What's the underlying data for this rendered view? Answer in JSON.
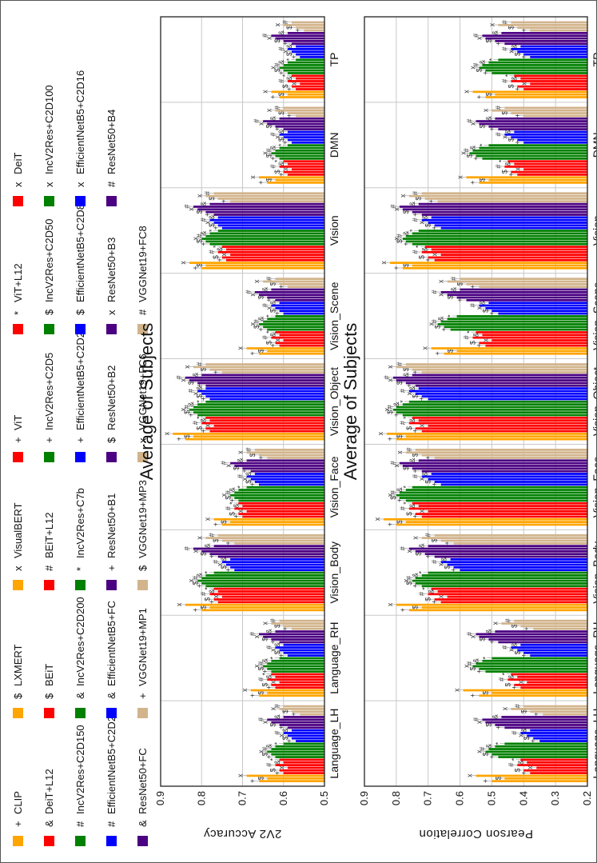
{
  "legend": [
    {
      "marker": "+",
      "label": "CLIP",
      "color": "#FFA500"
    },
    {
      "marker": "$",
      "label": "LXMERT",
      "color": "#FFA500"
    },
    {
      "marker": "x",
      "label": "VisualBERT",
      "color": "#FFA500"
    },
    {
      "marker": "+",
      "label": "ViT",
      "color": "#FF0000"
    },
    {
      "marker": "*",
      "label": "ViT+L12",
      "color": "#FF0000"
    },
    {
      "marker": "x",
      "label": "DeiT",
      "color": "#FF0000"
    },
    {
      "marker": "&",
      "label": "DeiT+L12",
      "color": "#FF0000"
    },
    {
      "marker": "$",
      "label": "BEiT",
      "color": "#FF0000"
    },
    {
      "marker": "#",
      "label": "BEiT+L12",
      "color": "#FF0000"
    },
    {
      "marker": "+",
      "label": "IncV2Res+C2D5",
      "color": "#008000"
    },
    {
      "marker": "$",
      "label": "IncV2Res+C2D50",
      "color": "#008000"
    },
    {
      "marker": "x",
      "label": "IncV2Res+C2D100",
      "color": "#008000"
    },
    {
      "marker": "#",
      "label": "IncV2Res+C2D150",
      "color": "#008000"
    },
    {
      "marker": "&",
      "label": "IncV2Res+C2D200",
      "color": "#008000"
    },
    {
      "marker": "*",
      "label": "IncV2Res+C7b",
      "color": "#008000"
    },
    {
      "marker": "+",
      "label": "EfficientNetB5+C2D2",
      "color": "#0000FF"
    },
    {
      "marker": "$",
      "label": "EfficientNetB5+C2D8",
      "color": "#0000FF"
    },
    {
      "marker": "x",
      "label": "EfficientNetB5+C2D16",
      "color": "#0000FF"
    },
    {
      "marker": "#",
      "label": "EfficientNetB5+C2D24",
      "color": "#0000FF"
    },
    {
      "marker": "&",
      "label": "EfficientNetB5+FC",
      "color": "#0000FF"
    },
    {
      "marker": "+",
      "label": "ResNet50+B1",
      "color": "#4B0082"
    },
    {
      "marker": "$",
      "label": "ResNet50+B2",
      "color": "#4B0082"
    },
    {
      "marker": "x",
      "label": "ResNet50+B3",
      "color": "#4B0082"
    },
    {
      "marker": "#",
      "label": "ResNet50+B4",
      "color": "#4B0082"
    },
    {
      "marker": "&",
      "label": "ResNet50+FC",
      "color": "#4B0082"
    },
    {
      "marker": "+",
      "label": "VGGNet19+MP1",
      "color": "#D2B48C"
    },
    {
      "marker": "$",
      "label": "VGGNet19+MP3",
      "color": "#D2B48C"
    },
    {
      "marker": "x",
      "label": "VGGNet19+FC6",
      "color": "#D2B48C"
    },
    {
      "marker": "#",
      "label": "VGGNet19+FC8",
      "color": "#D2B48C"
    }
  ],
  "chart_data": [
    {
      "type": "bar",
      "title": "Average of Subjects",
      "ylabel": "2V2 Accuracy",
      "ylim": [
        0.5,
        0.9
      ],
      "yticks": [
        "0.5",
        "0.6",
        "0.7",
        "0.8",
        "0.9"
      ],
      "grid": true,
      "categories": [
        "Language_LH",
        "Language_RH",
        "Vision_Body",
        "Vision_Face",
        "Vision_Object",
        "Vision_Scene",
        "Vision",
        "DMN",
        "TP"
      ],
      "groups": [
        {
          "name": "multimodal",
          "color": "#FFA500",
          "values": [
            [
              0.66,
              0.64,
              0.69
            ],
            [
              0.66,
              0.64,
              0.68
            ],
            [
              0.8,
              0.78,
              0.84
            ],
            [
              0.75,
              0.73,
              0.77
            ],
            [
              0.84,
              0.82,
              0.87
            ],
            [
              0.66,
              0.64,
              0.69
            ],
            [
              0.8,
              0.79,
              0.83
            ],
            [
              0.64,
              0.62,
              0.66
            ],
            [
              0.61,
              0.59,
              0.63
            ]
          ]
        },
        {
          "name": "transformer",
          "color": "#FF0000",
          "values": [
            [
              0.6,
              0.61,
              0.59,
              0.62,
              0.6,
              0.61
            ],
            [
              0.62,
              0.63,
              0.61,
              0.64,
              0.62,
              0.63
            ],
            [
              0.76,
              0.77,
              0.75,
              0.78,
              0.76,
              0.77
            ],
            [
              0.7,
              0.71,
              0.69,
              0.72,
              0.7,
              0.71
            ],
            [
              0.78,
              0.79,
              0.77,
              0.8,
              0.78,
              0.79
            ],
            [
              0.61,
              0.62,
              0.6,
              0.63,
              0.61,
              0.62
            ],
            [
              0.74,
              0.75,
              0.73,
              0.76,
              0.74,
              0.75
            ],
            [
              0.59,
              0.6,
              0.58,
              0.61,
              0.59,
              0.6
            ],
            [
              0.57,
              0.58,
              0.56,
              0.59,
              0.57,
              0.58
            ]
          ]
        },
        {
          "name": "incv2res",
          "color": "#008000",
          "values": [
            [
              0.62,
              0.63,
              0.64,
              0.63,
              0.62,
              0.6
            ],
            [
              0.63,
              0.64,
              0.65,
              0.64,
              0.63,
              0.61
            ],
            [
              0.79,
              0.8,
              0.81,
              0.8,
              0.79,
              0.77
            ],
            [
              0.71,
              0.72,
              0.73,
              0.72,
              0.71,
              0.69
            ],
            [
              0.81,
              0.82,
              0.83,
              0.82,
              0.81,
              0.79
            ],
            [
              0.64,
              0.65,
              0.66,
              0.65,
              0.64,
              0.62
            ],
            [
              0.78,
              0.79,
              0.8,
              0.79,
              0.78,
              0.76
            ],
            [
              0.61,
              0.62,
              0.63,
              0.62,
              0.61,
              0.59
            ],
            [
              0.59,
              0.6,
              0.61,
              0.6,
              0.59,
              0.57
            ]
          ]
        },
        {
          "name": "efficientnet",
          "color": "#0000FF",
          "values": [
            [
              0.57,
              0.58,
              0.59,
              0.6,
              0.58
            ],
            [
              0.59,
              0.6,
              0.61,
              0.62,
              0.6
            ],
            [
              0.72,
              0.73,
              0.74,
              0.75,
              0.73
            ],
            [
              0.66,
              0.67,
              0.68,
              0.69,
              0.67
            ],
            [
              0.78,
              0.79,
              0.8,
              0.81,
              0.79
            ],
            [
              0.6,
              0.61,
              0.62,
              0.63,
              0.61
            ],
            [
              0.75,
              0.76,
              0.77,
              0.78,
              0.76
            ],
            [
              0.58,
              0.59,
              0.6,
              0.61,
              0.59
            ],
            [
              0.56,
              0.57,
              0.58,
              0.59,
              0.57
            ]
          ]
        },
        {
          "name": "resnet",
          "color": "#4B0082",
          "values": [
            [
              0.59,
              0.61,
              0.63,
              0.64,
              0.6
            ],
            [
              0.61,
              0.63,
              0.65,
              0.66,
              0.62
            ],
            [
              0.76,
              0.78,
              0.8,
              0.82,
              0.77
            ],
            [
              0.68,
              0.7,
              0.72,
              0.73,
              0.69
            ],
            [
              0.79,
              0.81,
              0.83,
              0.84,
              0.8
            ],
            [
              0.62,
              0.64,
              0.66,
              0.67,
              0.63
            ],
            [
              0.77,
              0.79,
              0.81,
              0.82,
              0.78
            ],
            [
              0.6,
              0.62,
              0.64,
              0.65,
              0.61
            ],
            [
              0.58,
              0.6,
              0.62,
              0.63,
              0.59
            ]
          ]
        },
        {
          "name": "vggnet",
          "color": "#D2B48C",
          "values": [
            [
              0.56,
              0.58,
              0.61,
              0.6
            ],
            [
              0.58,
              0.6,
              0.63,
              0.61
            ],
            [
              0.72,
              0.75,
              0.79,
              0.76
            ],
            [
              0.64,
              0.66,
              0.69,
              0.67
            ],
            [
              0.75,
              0.78,
              0.82,
              0.79
            ],
            [
              0.59,
              0.61,
              0.65,
              0.62
            ],
            [
              0.73,
              0.76,
              0.79,
              0.77
            ],
            [
              0.57,
              0.59,
              0.62,
              0.6
            ],
            [
              0.55,
              0.57,
              0.6,
              0.58
            ]
          ]
        }
      ]
    },
    {
      "type": "bar",
      "title": "Average of Subjects",
      "ylabel": "Pearson Correlation",
      "ylim": [
        0.2,
        0.9
      ],
      "yticks": [
        "0.2",
        "0.3",
        "0.4",
        "0.5",
        "0.6",
        "0.7",
        "0.8",
        "0.9"
      ],
      "grid": true,
      "categories": [
        "Language_LH",
        "Language_RH",
        "Vision_Body",
        "Vision_Face",
        "Vision_Object",
        "Vision_Scene",
        "Vision",
        "DMN",
        "TP"
      ],
      "groups": [
        {
          "name": "multimodal",
          "color": "#FFA500",
          "values": [
            [
              0.5,
              0.46,
              0.55
            ],
            [
              0.54,
              0.5,
              0.59
            ],
            [
              0.76,
              0.72,
              0.8
            ],
            [
              0.8,
              0.77,
              0.84
            ],
            [
              0.8,
              0.77,
              0.83
            ],
            [
              0.65,
              0.61,
              0.69
            ],
            [
              0.78,
              0.75,
              0.82
            ],
            [
              0.54,
              0.51,
              0.58
            ],
            [
              0.52,
              0.49,
              0.56
            ]
          ]
        },
        {
          "name": "transformer",
          "color": "#FF0000",
          "values": [
            [
              0.38,
              0.4,
              0.36,
              0.42,
              0.39,
              0.41
            ],
            [
              0.41,
              0.43,
              0.39,
              0.45,
              0.42,
              0.44
            ],
            [
              0.66,
              0.68,
              0.64,
              0.7,
              0.67,
              0.69
            ],
            [
              0.72,
              0.74,
              0.7,
              0.76,
              0.73,
              0.75
            ],
            [
              0.72,
              0.74,
              0.7,
              0.76,
              0.73,
              0.75
            ],
            [
              0.52,
              0.54,
              0.5,
              0.56,
              0.53,
              0.55
            ],
            [
              0.68,
              0.7,
              0.66,
              0.72,
              0.69,
              0.71
            ],
            [
              0.42,
              0.44,
              0.4,
              0.46,
              0.43,
              0.45
            ],
            [
              0.4,
              0.42,
              0.38,
              0.44,
              0.41,
              0.43
            ]
          ]
        },
        {
          "name": "incv2res",
          "color": "#008000",
          "values": [
            [
              0.48,
              0.5,
              0.52,
              0.51,
              0.49,
              0.46
            ],
            [
              0.52,
              0.54,
              0.56,
              0.55,
              0.53,
              0.5
            ],
            [
              0.72,
              0.74,
              0.75,
              0.74,
              0.72,
              0.7
            ],
            [
              0.77,
              0.79,
              0.8,
              0.79,
              0.77,
              0.75
            ],
            [
              0.78,
              0.8,
              0.81,
              0.8,
              0.78,
              0.76
            ],
            [
              0.63,
              0.65,
              0.67,
              0.66,
              0.64,
              0.61
            ],
            [
              0.75,
              0.77,
              0.78,
              0.77,
              0.75,
              0.73
            ],
            [
              0.53,
              0.55,
              0.57,
              0.56,
              0.54,
              0.51
            ],
            [
              0.5,
              0.52,
              0.54,
              0.53,
              0.51,
              0.48
            ]
          ]
        },
        {
          "name": "efficientnet",
          "color": "#0000FF",
          "values": [
            [
              0.35,
              0.37,
              0.39,
              0.41,
              0.38
            ],
            [
              0.38,
              0.4,
              0.42,
              0.44,
              0.41
            ],
            [
              0.6,
              0.62,
              0.64,
              0.66,
              0.63
            ],
            [
              0.66,
              0.68,
              0.7,
              0.72,
              0.69
            ],
            [
              0.7,
              0.72,
              0.74,
              0.76,
              0.73
            ],
            [
              0.48,
              0.5,
              0.52,
              0.54,
              0.51
            ],
            [
              0.66,
              0.68,
              0.7,
              0.72,
              0.69
            ],
            [
              0.4,
              0.42,
              0.44,
              0.46,
              0.43
            ],
            [
              0.38,
              0.4,
              0.42,
              0.44,
              0.41
            ]
          ]
        },
        {
          "name": "resnet",
          "color": "#4B0082",
          "values": [
            [
              0.46,
              0.49,
              0.52,
              0.53,
              0.47
            ],
            [
              0.48,
              0.51,
              0.54,
              0.55,
              0.49
            ],
            [
              0.68,
              0.71,
              0.74,
              0.76,
              0.7
            ],
            [
              0.72,
              0.75,
              0.78,
              0.79,
              0.73
            ],
            [
              0.74,
              0.77,
              0.8,
              0.81,
              0.75
            ],
            [
              0.58,
              0.61,
              0.64,
              0.66,
              0.6
            ],
            [
              0.72,
              0.75,
              0.78,
              0.79,
              0.73
            ],
            [
              0.48,
              0.51,
              0.54,
              0.55,
              0.49
            ],
            [
              0.46,
              0.49,
              0.52,
              0.53,
              0.47
            ]
          ]
        },
        {
          "name": "vggnet",
          "color": "#D2B48C",
          "values": [
            [
              0.34,
              0.38,
              0.44,
              0.4
            ],
            [
              0.37,
              0.41,
              0.47,
              0.43
            ],
            [
              0.62,
              0.66,
              0.72,
              0.68
            ],
            [
              0.68,
              0.72,
              0.77,
              0.74
            ],
            [
              0.72,
              0.75,
              0.8,
              0.77
            ],
            [
              0.54,
              0.58,
              0.64,
              0.6
            ],
            [
              0.67,
              0.71,
              0.76,
              0.72
            ],
            [
              0.4,
              0.44,
              0.5,
              0.46
            ],
            [
              0.38,
              0.42,
              0.48,
              0.44
            ]
          ]
        }
      ]
    }
  ]
}
